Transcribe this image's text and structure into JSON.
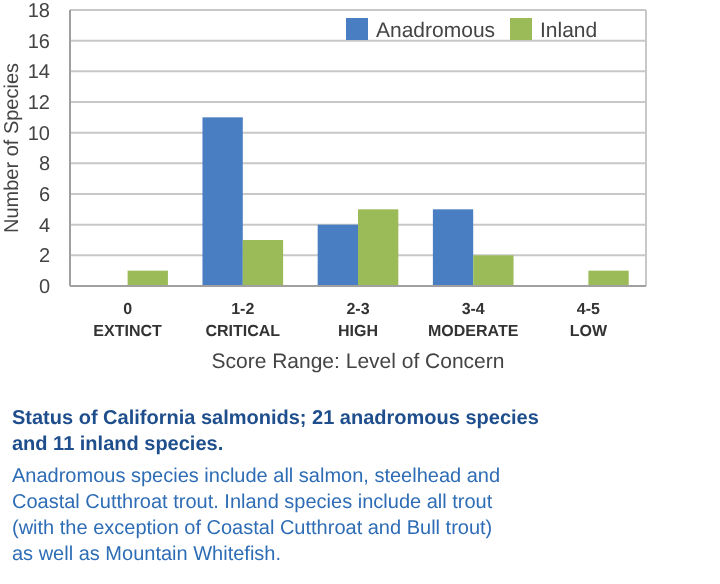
{
  "chart_data": {
    "type": "bar",
    "xlabel": "Score Range: Level of Concern",
    "ylabel": "Number of Species",
    "categories": [
      "0\nEXTINCT",
      "1-2\nCRITICAL",
      "2-3\nHIGH",
      "3-4\nMODERATE",
      "4-5\nLOW"
    ],
    "series": [
      {
        "name": "Anadromous",
        "color": "#4a7ec2",
        "values": [
          0,
          11,
          4,
          5,
          0
        ]
      },
      {
        "name": "Inland",
        "color": "#9bbb59",
        "values": [
          1,
          3,
          5,
          2,
          1
        ]
      }
    ],
    "ylim": [
      0,
      18
    ],
    "yticks": [
      0,
      2,
      4,
      6,
      8,
      10,
      12,
      14,
      16,
      18
    ],
    "grid": "y",
    "legend": "top right",
    "annotations": [
      "Status of California salmonids; 21 anadromous species and 11 inland species.",
      "Anadromous species include all salmon, steelhead and Coastal Cutthroat trout. Inland species include all trout (with the exception of Coastal Cutthroat and Bull trout) as well as Mountain Whitefish."
    ]
  }
}
